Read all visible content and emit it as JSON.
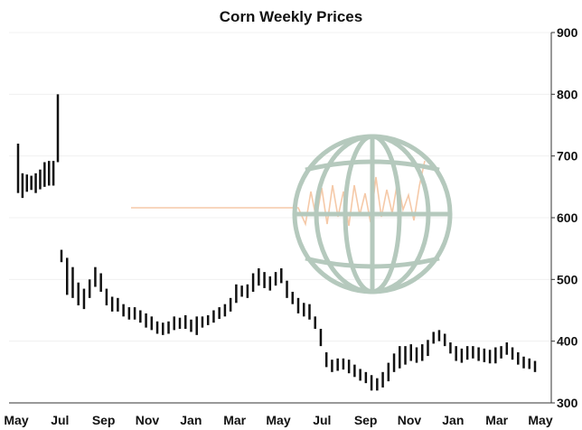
{
  "chart_data": {
    "type": "ohlc",
    "title": "Corn Weekly Prices",
    "xlabel": "",
    "ylabel": "",
    "ylim": [
      300,
      900
    ],
    "y_axis_side": "right",
    "grid": "horizontal-light",
    "legend": "none",
    "x_tick_labels": [
      "May",
      "Jul",
      "Sep",
      "Nov",
      "Jan",
      "Mar",
      "May",
      "Jul",
      "Sep",
      "Nov",
      "Jan",
      "Mar",
      "May"
    ],
    "y_ticks": [
      300,
      400,
      500,
      600,
      700,
      800,
      900
    ],
    "colors": {
      "bars": "#111111",
      "grid": "#f0f0f0",
      "axis": "#333333",
      "watermark_globe": "#b5c9bd",
      "watermark_line": "#f5c9a8"
    },
    "bars": [
      [
        640,
        720
      ],
      [
        632,
        672
      ],
      [
        642,
        670
      ],
      [
        645,
        668
      ],
      [
        640,
        672
      ],
      [
        646,
        678
      ],
      [
        650,
        690
      ],
      [
        652,
        692
      ],
      [
        652,
        692
      ],
      [
        690,
        800
      ],
      [
        528,
        548
      ],
      [
        475,
        535
      ],
      [
        470,
        520
      ],
      [
        458,
        495
      ],
      [
        452,
        485
      ],
      [
        470,
        500
      ],
      [
        488,
        520
      ],
      [
        480,
        510
      ],
      [
        458,
        485
      ],
      [
        448,
        472
      ],
      [
        448,
        470
      ],
      [
        440,
        460
      ],
      [
        435,
        455
      ],
      [
        435,
        455
      ],
      [
        430,
        450
      ],
      [
        422,
        445
      ],
      [
        418,
        440
      ],
      [
        412,
        432
      ],
      [
        410,
        430
      ],
      [
        412,
        432
      ],
      [
        418,
        440
      ],
      [
        420,
        438
      ],
      [
        420,
        442
      ],
      [
        415,
        435
      ],
      [
        410,
        440
      ],
      [
        422,
        440
      ],
      [
        426,
        442
      ],
      [
        430,
        450
      ],
      [
        436,
        455
      ],
      [
        440,
        460
      ],
      [
        448,
        470
      ],
      [
        462,
        492
      ],
      [
        472,
        490
      ],
      [
        470,
        492
      ],
      [
        480,
        510
      ],
      [
        490,
        518
      ],
      [
        486,
        512
      ],
      [
        482,
        505
      ],
      [
        490,
        512
      ],
      [
        494,
        518
      ],
      [
        470,
        498
      ],
      [
        460,
        480
      ],
      [
        445,
        470
      ],
      [
        440,
        462
      ],
      [
        435,
        460
      ],
      [
        420,
        440
      ],
      [
        392,
        420
      ],
      [
        358,
        382
      ],
      [
        350,
        370
      ],
      [
        352,
        372
      ],
      [
        354,
        372
      ],
      [
        348,
        370
      ],
      [
        342,
        362
      ],
      [
        336,
        355
      ],
      [
        332,
        350
      ],
      [
        320,
        345
      ],
      [
        320,
        340
      ],
      [
        325,
        350
      ],
      [
        335,
        365
      ],
      [
        350,
        380
      ],
      [
        356,
        392
      ],
      [
        362,
        392
      ],
      [
        368,
        395
      ],
      [
        365,
        390
      ],
      [
        368,
        395
      ],
      [
        376,
        402
      ],
      [
        396,
        415
      ],
      [
        400,
        418
      ],
      [
        392,
        412
      ],
      [
        380,
        398
      ],
      [
        368,
        392
      ],
      [
        365,
        388
      ],
      [
        370,
        392
      ],
      [
        372,
        392
      ],
      [
        368,
        390
      ],
      [
        366,
        388
      ],
      [
        364,
        386
      ],
      [
        364,
        390
      ],
      [
        372,
        392
      ],
      [
        378,
        398
      ],
      [
        370,
        390
      ],
      [
        362,
        382
      ],
      [
        356,
        375
      ],
      [
        355,
        372
      ],
      [
        350,
        368
      ]
    ],
    "series": [
      {
        "name": "",
        "x_index_start": 0,
        "note_values": "bars"
      }
    ],
    "watermark": {
      "type": "globe-with-price-line",
      "position": "center-right"
    }
  }
}
